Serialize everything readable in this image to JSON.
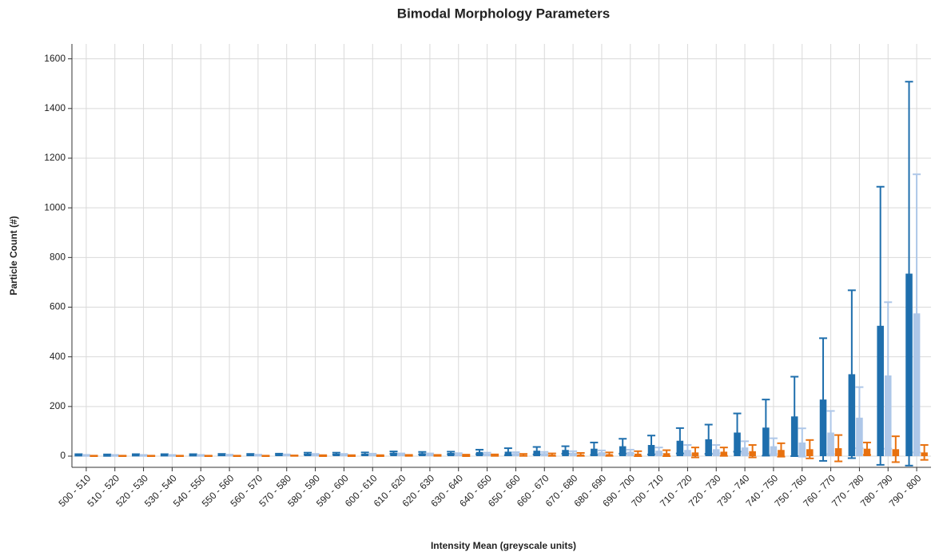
{
  "chart_data": {
    "type": "bar",
    "title": "Bimodal Morphology Parameters",
    "x_label": "Intensity Mean (greyscale units)",
    "y_label": "Particle Count (#)",
    "categories": [
      "500 - 510",
      "510 - 520",
      "520 - 530",
      "530 - 540",
      "540 - 550",
      "550 - 560",
      "560 - 570",
      "570 - 580",
      "580 - 590",
      "590 - 600",
      "600 - 610",
      "610 - 620",
      "620 - 630",
      "630 - 640",
      "640 - 650",
      "650 - 660",
      "660 - 670",
      "670 - 680",
      "680 - 690",
      "690 - 700",
      "700 - 710",
      "710 - 720",
      "720 - 730",
      "730 - 740",
      "740 - 750",
      "750 - 760",
      "760 - 770",
      "770 - 780",
      "780 - 790",
      "790 - 800"
    ],
    "series": [
      {
        "color": "#1f6fad",
        "values": [
          5,
          4,
          5,
          5,
          5,
          6,
          6,
          7,
          10,
          10,
          10,
          14,
          12,
          13,
          17,
          18,
          22,
          25,
          30,
          40,
          45,
          62,
          68,
          95,
          115,
          160,
          228,
          330,
          525,
          735
        ],
        "errors": [
          3,
          3,
          3,
          3,
          3,
          3,
          3,
          3,
          4,
          4,
          5,
          5,
          5,
          5,
          9,
          14,
          15,
          15,
          25,
          30,
          38,
          51,
          59,
          77,
          113,
          160,
          247,
          338,
          560,
          773
        ]
      },
      {
        "color": "#aec7e8",
        "values": [
          3,
          3,
          3,
          3,
          3,
          4,
          4,
          5,
          6,
          6,
          7,
          8,
          8,
          8,
          10,
          12,
          12,
          14,
          16,
          18,
          22,
          25,
          28,
          35,
          40,
          55,
          95,
          155,
          325,
          575
        ],
        "errors": [
          2,
          2,
          2,
          2,
          2,
          2,
          2,
          2,
          3,
          3,
          3,
          3,
          3,
          4,
          4,
          4,
          5,
          6,
          7,
          8,
          13,
          20,
          17,
          25,
          32,
          57,
          87,
          123,
          295,
          560
        ]
      },
      {
        "color": "#e8710f",
        "values": [
          1,
          1,
          1,
          1,
          1,
          1,
          1,
          2,
          2,
          2,
          2,
          3,
          3,
          3,
          4,
          5,
          6,
          7,
          8,
          10,
          12,
          15,
          18,
          20,
          25,
          28,
          32,
          30,
          28,
          15
        ],
        "errors": [
          1,
          1,
          1,
          1,
          1,
          1,
          1,
          1,
          2,
          2,
          2,
          2,
          2,
          3,
          3,
          4,
          5,
          6,
          7,
          10,
          12,
          20,
          17,
          25,
          27,
          37,
          53,
          25,
          52,
          30
        ]
      }
    ],
    "ylim": [
      -45,
      1660
    ],
    "yticks": [
      0,
      200,
      400,
      600,
      800,
      1000,
      1200,
      1400,
      1600
    ],
    "grid": true
  }
}
